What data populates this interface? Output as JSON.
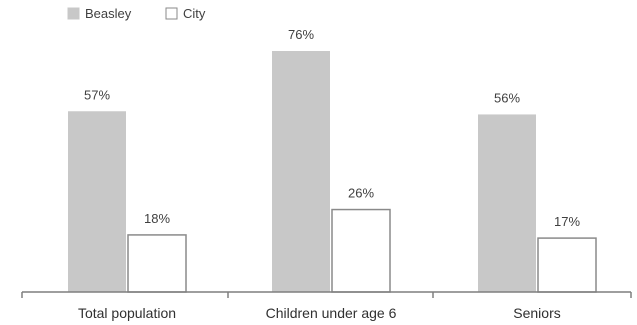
{
  "chart_data": {
    "type": "bar",
    "categories": [
      "Total population",
      "Children under age 6",
      "Seniors"
    ],
    "series": [
      {
        "name": "Beasley",
        "values": [
          57,
          76,
          56
        ],
        "labels": [
          "57%",
          "76%",
          "56%"
        ],
        "color": "#c8c8c8"
      },
      {
        "name": "City",
        "values": [
          18,
          26,
          17
        ],
        "labels": [
          "18%",
          "26%",
          "17%"
        ],
        "color": "#ffffff"
      }
    ],
    "ylim": [
      0,
      100
    ],
    "grid": false,
    "legend_position": "top-left"
  },
  "colors": {
    "beasley_fill": "#c8c8c8",
    "city_stroke": "#8a8a8a",
    "axis": "#7f7f7f"
  }
}
